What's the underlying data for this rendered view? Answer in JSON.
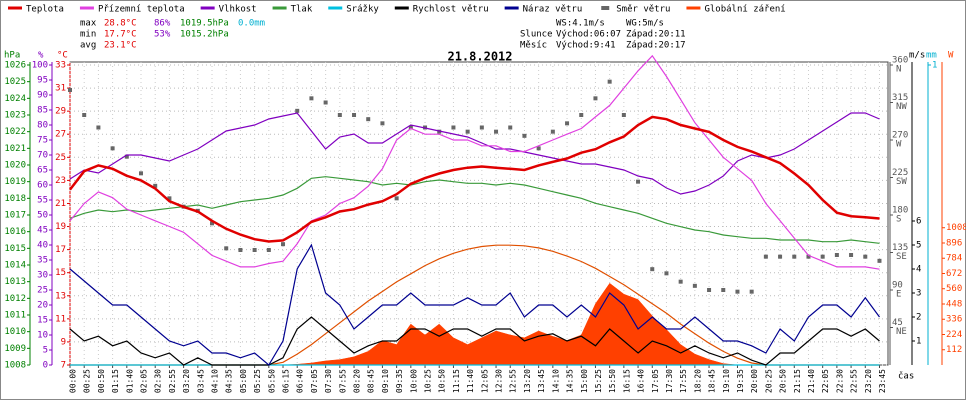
{
  "chart_data": {
    "type": "line",
    "title": "21.8.2012",
    "x_label": "čas",
    "grid": true,
    "grid_axis": "c",
    "stats": {
      "max": {
        "label": "max",
        "temp": "28.8°C",
        "hum": "86%",
        "press": "1019.5hPa",
        "rain": "0.0mm"
      },
      "min": {
        "label": "min",
        "temp": "17.7°C",
        "hum": "53%",
        "press": "1015.2hPa"
      },
      "avg": {
        "label": "avg",
        "temp": "23.1°C"
      }
    },
    "wind_info": [
      "WS:4.1m/s",
      "WG:5m/s"
    ],
    "sun": {
      "label": "Slunce",
      "rise": "Východ:06:07",
      "set": "Západ:20:11"
    },
    "moon": {
      "label": "Měsíc",
      "rise": "Východ:9:41",
      "set": "Západ:20:17"
    },
    "categories": [
      "00:00",
      "00:25",
      "00:50",
      "01:15",
      "01:40",
      "02:05",
      "02:30",
      "02:55",
      "03:20",
      "03:45",
      "04:10",
      "04:35",
      "05:00",
      "05:25",
      "05:50",
      "06:15",
      "06:40",
      "07:05",
      "07:30",
      "07:55",
      "08:20",
      "08:45",
      "09:10",
      "09:35",
      "10:00",
      "10:25",
      "10:50",
      "11:15",
      "11:40",
      "12:05",
      "12:30",
      "12:55",
      "13:20",
      "13:45",
      "14:10",
      "14:35",
      "15:00",
      "15:25",
      "15:50",
      "16:15",
      "16:40",
      "17:05",
      "17:30",
      "17:55",
      "18:20",
      "18:45",
      "19:10",
      "19:35",
      "20:00",
      "20:25",
      "20:50",
      "21:15",
      "21:40",
      "22:05",
      "22:30",
      "22:55",
      "23:20",
      "23:45"
    ],
    "axes": [
      {
        "id": "hpa",
        "label": "hPa",
        "color": "#008000",
        "ylim": [
          1008,
          1026
        ],
        "yticks": [
          1008,
          1009,
          1010,
          1011,
          1012,
          1013,
          1014,
          1015,
          1016,
          1017,
          1018,
          1019,
          1020,
          1021,
          1022,
          1023,
          1024,
          1025,
          1026
        ]
      },
      {
        "id": "pct",
        "label": "%",
        "color": "#8000c0",
        "ylim": [
          0,
          100
        ],
        "yticks": [
          0,
          5,
          10,
          15,
          20,
          25,
          30,
          35,
          40,
          45,
          50,
          55,
          60,
          65,
          70,
          75,
          80,
          85,
          90,
          95,
          100
        ]
      },
      {
        "id": "c",
        "label": "°C",
        "color": "#e00000",
        "ylim": [
          7,
          33
        ],
        "yticks": [
          7,
          9,
          11,
          13,
          15,
          17,
          19,
          21,
          23,
          25,
          27,
          29,
          31,
          33
        ]
      },
      {
        "id": "deg",
        "color": "#555555",
        "ylim": [
          0,
          360
        ],
        "yticks": [
          {
            "value": 45,
            "label": "45",
            "compass": "NE"
          },
          {
            "value": 90,
            "label": "90",
            "compass": "E"
          },
          {
            "value": 135,
            "label": "135",
            "compass": "SE"
          },
          {
            "value": 180,
            "label": "180",
            "compass": "S"
          },
          {
            "value": 225,
            "label": "225",
            "compass": "SW"
          },
          {
            "value": 270,
            "label": "270",
            "compass": "W"
          },
          {
            "value": 315,
            "label": "315",
            "compass": "NW"
          },
          {
            "value": 360,
            "label": "360",
            "compass": "N"
          }
        ]
      },
      {
        "id": "ms",
        "label": "m/s",
        "color": "#000000",
        "ylim": [
          0,
          12.5
        ],
        "yticks": [
          1,
          2,
          3,
          4,
          5,
          6
        ]
      },
      {
        "id": "mm",
        "label": "mm",
        "color": "#00b0d0",
        "ylim": [
          0,
          1
        ],
        "yticks": [
          1
        ]
      },
      {
        "id": "w",
        "label": "W",
        "color": "#ff4000",
        "ylim": [
          0,
          2203
        ],
        "yticks": [
          112,
          224,
          336,
          448,
          560,
          672,
          784,
          896,
          1008
        ]
      }
    ],
    "series": [
      {
        "name": "Teplota",
        "color": "#e00000",
        "axis": "c",
        "values": [
          22.2,
          23.8,
          24.3,
          24.0,
          23.4,
          23.0,
          22.3,
          21.2,
          20.7,
          20.3,
          19.5,
          18.8,
          18.3,
          17.9,
          17.7,
          17.8,
          18.5,
          19.4,
          19.8,
          20.3,
          20.5,
          20.9,
          21.2,
          21.8,
          22.7,
          23.2,
          23.6,
          23.9,
          24.1,
          24.2,
          24.1,
          24.0,
          23.9,
          24.3,
          24.6,
          24.9,
          25.4,
          25.7,
          26.3,
          26.8,
          27.8,
          28.5,
          28.3,
          27.8,
          27.5,
          27.2,
          26.5,
          25.9,
          25.5,
          25.0,
          24.5,
          23.6,
          22.6,
          21.3,
          20.2,
          19.9,
          19.8,
          19.7
        ]
      },
      {
        "name": "Přízemní teplota",
        "color": "#e040e0",
        "axis": "c",
        "values": [
          19.5,
          21,
          22,
          21.5,
          20.5,
          20,
          19.5,
          19,
          18.5,
          17.5,
          16.5,
          16,
          15.5,
          15.5,
          15.8,
          16,
          17.5,
          19.5,
          20,
          21,
          21.5,
          22.5,
          24,
          26.5,
          27.5,
          27,
          27,
          26.5,
          26.5,
          26,
          26,
          25.5,
          25.5,
          26,
          26.5,
          27,
          27.5,
          28.5,
          29.5,
          31,
          32.5,
          33.8,
          32,
          30,
          28,
          26.5,
          25,
          24,
          23,
          21,
          19.5,
          18,
          16.5,
          16,
          15.5,
          15.5,
          15.5,
          15.3
        ]
      },
      {
        "name": "Vlhkost",
        "color": "#8000c0",
        "axis": "pct",
        "values": [
          62,
          65,
          64,
          67,
          70,
          70,
          69,
          68,
          70,
          72,
          75,
          78,
          79,
          80,
          82,
          83,
          84,
          78,
          72,
          76,
          77,
          74,
          74,
          77,
          80,
          79,
          78,
          77,
          76,
          74,
          72,
          72,
          71,
          70,
          69,
          68,
          67,
          67,
          66,
          65,
          63,
          62,
          59,
          57,
          58,
          60,
          63,
          68,
          70,
          69,
          70,
          72,
          75,
          78,
          81,
          84,
          84,
          82
        ]
      },
      {
        "name": "Tlak",
        "color": "#3a9a3a",
        "axis": "hpa",
        "values": [
          1016.8,
          1017.1,
          1017.3,
          1017.2,
          1017.3,
          1017.2,
          1017.3,
          1017.4,
          1017.5,
          1017.6,
          1017.4,
          1017.6,
          1017.8,
          1017.9,
          1018.0,
          1018.2,
          1018.6,
          1019.2,
          1019.3,
          1019.2,
          1019.1,
          1019.0,
          1018.8,
          1018.9,
          1018.8,
          1019.0,
          1019.1,
          1019.0,
          1018.9,
          1018.9,
          1018.8,
          1018.9,
          1018.8,
          1018.6,
          1018.4,
          1018.2,
          1018.0,
          1017.7,
          1017.5,
          1017.3,
          1017.1,
          1016.8,
          1016.5,
          1016.3,
          1016.1,
          1016.0,
          1015.8,
          1015.7,
          1015.6,
          1015.6,
          1015.5,
          1015.5,
          1015.5,
          1015.4,
          1015.4,
          1015.5,
          1015.4,
          1015.3
        ]
      },
      {
        "name": "Srážky",
        "color": "#00c0e0",
        "axis": "mm",
        "values": [
          0,
          0,
          0,
          0,
          0,
          0,
          0,
          0,
          0,
          0,
          0,
          0,
          0,
          0,
          0,
          0,
          0,
          0,
          0,
          0,
          0,
          0,
          0,
          0,
          0,
          0,
          0,
          0,
          0,
          0,
          0,
          0,
          0,
          0,
          0,
          0,
          0,
          0,
          0,
          0,
          0,
          0,
          0,
          0,
          0,
          0,
          0,
          0,
          0,
          0,
          0,
          0,
          0,
          0,
          0,
          0,
          0,
          0
        ]
      },
      {
        "name": "Rychlost větru",
        "color": "#000000",
        "axis": "ms",
        "values": [
          1.5,
          1,
          1.2,
          0.8,
          1,
          0.5,
          0.3,
          0.5,
          0,
          0.3,
          0,
          0,
          0,
          0,
          0,
          0.3,
          1.5,
          2,
          1.5,
          1,
          0.5,
          0.8,
          1,
          1,
          1.5,
          1.5,
          1.2,
          1.5,
          1.5,
          1.2,
          1.5,
          1.5,
          1,
          1.2,
          1.3,
          1,
          1.2,
          0.8,
          1.5,
          1,
          0.5,
          1,
          0.8,
          0.5,
          0.8,
          0.5,
          0.3,
          0.5,
          0.2,
          0,
          0.5,
          0.5,
          1,
          1.5,
          1.5,
          1.2,
          1.5,
          1
        ]
      },
      {
        "name": "Náraz větru",
        "color": "#000090",
        "axis": "ms",
        "values": [
          4,
          3.5,
          3,
          2.5,
          2.5,
          2,
          1.5,
          1,
          0.8,
          1,
          0.5,
          0.5,
          0.3,
          0.5,
          0,
          1,
          4,
          5,
          3,
          2.5,
          1.5,
          2,
          2.5,
          2.5,
          3,
          2.5,
          2.5,
          2.5,
          2.8,
          2.5,
          2.5,
          3,
          2,
          2.5,
          2.5,
          2,
          2.5,
          2,
          3,
          2.5,
          1.5,
          2,
          1.5,
          1.5,
          2,
          1.5,
          1,
          1,
          0.8,
          0.5,
          1.5,
          1,
          2,
          2.5,
          2.5,
          2,
          2.8,
          2
        ]
      },
      {
        "name": "Směr větru",
        "color": "#666666",
        "axis": "deg",
        "type": "scatter",
        "values": [
          330,
          300,
          285,
          260,
          250,
          230,
          215,
          200,
          190,
          185,
          170,
          140,
          138,
          138,
          138,
          145,
          305,
          320,
          315,
          300,
          300,
          295,
          290,
          200,
          285,
          285,
          280,
          285,
          280,
          285,
          280,
          285,
          275,
          260,
          280,
          290,
          300,
          320,
          340,
          300,
          220,
          115,
          110,
          100,
          95,
          90,
          90,
          88,
          88,
          130,
          130,
          130,
          130,
          130,
          132,
          132,
          130,
          125
        ]
      },
      {
        "name": "Globální záření",
        "color": "#ff4000",
        "axis": "w",
        "type": "area",
        "line_color": "#e05000",
        "values": [
          0,
          0,
          0,
          0,
          0,
          0,
          0,
          0,
          0,
          0,
          0,
          0,
          0,
          0,
          0,
          0,
          5,
          15,
          30,
          40,
          60,
          100,
          180,
          150,
          300,
          220,
          300,
          200,
          150,
          200,
          250,
          220,
          200,
          250,
          210,
          180,
          220,
          450,
          600,
          520,
          480,
          360,
          260,
          150,
          80,
          40,
          10,
          0,
          0,
          0,
          0,
          0,
          0,
          0,
          0,
          0,
          0,
          0
        ],
        "clear_sky_values": [
          0,
          0,
          0,
          0,
          0,
          0,
          0,
          0,
          0,
          0,
          0,
          0,
          0,
          0,
          0,
          20,
          80,
          150,
          230,
          310,
          390,
          470,
          540,
          610,
          670,
          730,
          780,
          820,
          850,
          870,
          880,
          880,
          875,
          860,
          835,
          800,
          760,
          710,
          650,
          590,
          520,
          450,
          380,
          300,
          230,
          160,
          100,
          50,
          15,
          0,
          0,
          0,
          0,
          0,
          0,
          0,
          0,
          0
        ]
      }
    ]
  }
}
